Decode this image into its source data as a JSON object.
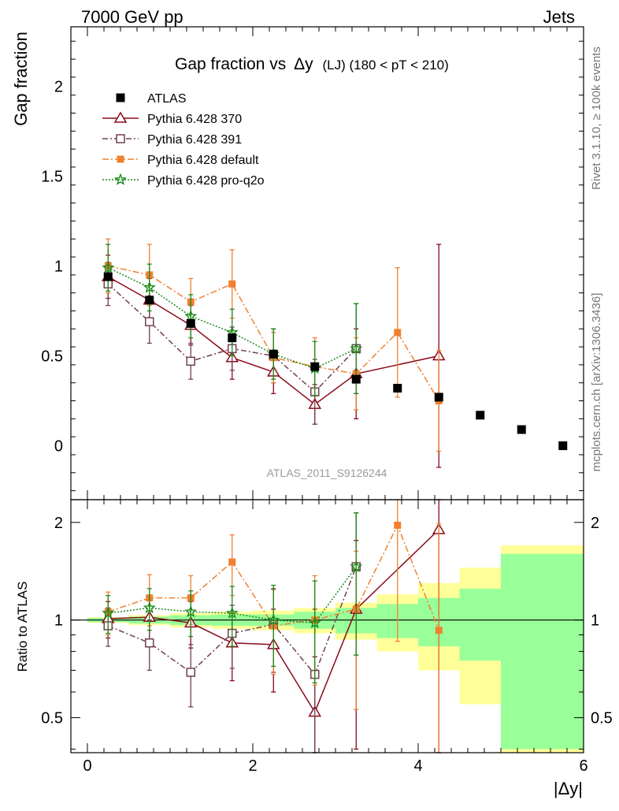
{
  "header": {
    "energy": "7000 GeV pp",
    "category": "Jets",
    "title_main": "Gap fraction vs",
    "title_var": "Δy",
    "title_sub": "(LJ) (180 < pT < 210)",
    "analysis": "ATLAS_2011_S9126244",
    "rivet": "Rivet 3.1.10, ≥ 100k events",
    "mcplots": "mcplots.cern.ch [arXiv:1306.3436]"
  },
  "chart_data": {
    "type": "scatter",
    "xlabel": "|Δy|",
    "ylabel": "Gap fraction",
    "ratio_ylabel": "Ratio to ATLAS",
    "xlim": [
      -0.2,
      6.0
    ],
    "ylim": [
      -0.3,
      2.33
    ],
    "ratio_ylim": [
      0.39,
      2.35
    ],
    "ratio_log": true,
    "x_ticks": [
      0,
      2,
      4,
      6
    ],
    "y_ticks": [
      0,
      0.5,
      1,
      1.5,
      2
    ],
    "ratio_ticks": [
      0.5,
      1,
      2
    ],
    "legend_position": "top-left",
    "data": {
      "name": "ATLAS",
      "color": "#000000",
      "x": [
        0.25,
        0.75,
        1.25,
        1.75,
        2.25,
        2.75,
        3.25,
        3.75,
        4.25,
        4.75,
        5.25,
        5.75
      ],
      "y": [
        0.94,
        0.81,
        0.68,
        0.6,
        0.51,
        0.44,
        0.37,
        0.32,
        0.27,
        0.17,
        0.09,
        0.0
      ],
      "xerr": 0.25,
      "band_inner": [
        0.015,
        0.025,
        0.035,
        0.04,
        0.04,
        0.06,
        0.09,
        0.12,
        0.17,
        0.25,
        0.6,
        0.6
      ],
      "band_outer": [
        0.02,
        0.035,
        0.05,
        0.06,
        0.07,
        0.09,
        0.13,
        0.2,
        0.3,
        0.45,
        0.7,
        0.7
      ]
    },
    "series": [
      {
        "name": "Pythia 6.428 370",
        "color": "#8b0a1a",
        "marker": "open-triangle",
        "dash": "",
        "x": [
          0.25,
          0.75,
          1.25,
          1.75,
          2.25,
          2.75,
          3.25,
          4.25
        ],
        "y": [
          0.94,
          0.81,
          0.67,
          0.49,
          0.41,
          0.23,
          0.4,
          0.5
        ],
        "err": [
          0.12,
          0.12,
          0.11,
          0.12,
          0.12,
          0.11,
          0.25,
          0.62
        ],
        "ratio": [
          1.01,
          1.02,
          0.98,
          0.85,
          0.84,
          0.52,
          1.08,
          1.9
        ],
        "ratio_err": [
          0.13,
          0.15,
          0.16,
          0.2,
          0.24,
          0.25,
          0.68,
          2.3
        ]
      },
      {
        "name": "Pythia 6.428 391",
        "color": "#704050",
        "marker": "open-square",
        "dash": "7 3 2 3",
        "x": [
          0.25,
          0.75,
          1.25,
          1.75,
          2.25,
          2.75,
          3.25
        ],
        "y": [
          0.9,
          0.69,
          0.47,
          0.54,
          0.5,
          0.3,
          0.54
        ],
        "err": [
          0.12,
          0.12,
          0.1,
          0.12,
          0.15,
          0.18,
          0.25
        ],
        "ratio": [
          0.96,
          0.85,
          0.69,
          0.91,
          0.97,
          0.68,
          1.46
        ],
        "ratio_err": [
          0.13,
          0.15,
          0.15,
          0.2,
          0.28,
          0.4,
          0.68
        ]
      },
      {
        "name": "Pythia 6.428 default",
        "color": "#f08030",
        "marker": "filled-square",
        "dash": "8 3 2 3",
        "x": [
          0.25,
          0.75,
          1.25,
          1.75,
          2.25,
          2.75,
          3.25,
          3.75,
          4.25
        ],
        "y": [
          1.0,
          0.95,
          0.8,
          0.9,
          0.49,
          0.44,
          0.4,
          0.63,
          0.25
        ],
        "err": [
          0.15,
          0.17,
          0.13,
          0.19,
          0.14,
          0.16,
          0.2,
          0.36,
          0.28
        ],
        "ratio": [
          1.06,
          1.17,
          1.17,
          1.51,
          0.96,
          1.0,
          1.08,
          1.96,
          0.93
        ],
        "ratio_err": [
          0.16,
          0.21,
          0.2,
          0.32,
          0.28,
          0.37,
          0.55,
          1.1,
          1.05
        ]
      },
      {
        "name": "Pythia 6.428 pro-q2o",
        "color": "#1a8a1a",
        "marker": "star",
        "dash": "2 2",
        "x": [
          0.25,
          0.75,
          1.25,
          1.75,
          2.25,
          2.75,
          3.25
        ],
        "y": [
          0.99,
          0.88,
          0.72,
          0.63,
          0.51,
          0.43,
          0.54
        ],
        "err": [
          0.13,
          0.13,
          0.12,
          0.13,
          0.14,
          0.15,
          0.25
        ],
        "ratio": [
          1.05,
          1.09,
          1.06,
          1.05,
          1.0,
          0.98,
          1.46
        ],
        "ratio_err": [
          0.14,
          0.16,
          0.17,
          0.22,
          0.28,
          0.34,
          0.68
        ]
      }
    ]
  }
}
